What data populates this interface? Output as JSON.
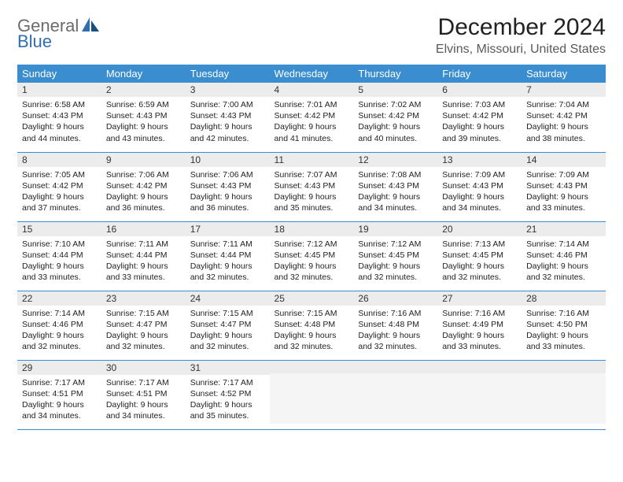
{
  "logo": {
    "line1": "General",
    "line2": "Blue"
  },
  "title": "December 2024",
  "location": "Elvins, Missouri, United States",
  "colors": {
    "header_bg": "#3a8dcf",
    "header_fg": "#ffffff",
    "daynum_bg": "#ececec",
    "rule": "#3a8dcf",
    "logo_gray": "#6b6b6b",
    "logo_blue": "#2f6fb0"
  },
  "day_headers": [
    "Sunday",
    "Monday",
    "Tuesday",
    "Wednesday",
    "Thursday",
    "Friday",
    "Saturday"
  ],
  "weeks": [
    [
      {
        "n": "1",
        "sr": "Sunrise: 6:58 AM",
        "ss": "Sunset: 4:43 PM",
        "d1": "Daylight: 9 hours",
        "d2": "and 44 minutes."
      },
      {
        "n": "2",
        "sr": "Sunrise: 6:59 AM",
        "ss": "Sunset: 4:43 PM",
        "d1": "Daylight: 9 hours",
        "d2": "and 43 minutes."
      },
      {
        "n": "3",
        "sr": "Sunrise: 7:00 AM",
        "ss": "Sunset: 4:43 PM",
        "d1": "Daylight: 9 hours",
        "d2": "and 42 minutes."
      },
      {
        "n": "4",
        "sr": "Sunrise: 7:01 AM",
        "ss": "Sunset: 4:42 PM",
        "d1": "Daylight: 9 hours",
        "d2": "and 41 minutes."
      },
      {
        "n": "5",
        "sr": "Sunrise: 7:02 AM",
        "ss": "Sunset: 4:42 PM",
        "d1": "Daylight: 9 hours",
        "d2": "and 40 minutes."
      },
      {
        "n": "6",
        "sr": "Sunrise: 7:03 AM",
        "ss": "Sunset: 4:42 PM",
        "d1": "Daylight: 9 hours",
        "d2": "and 39 minutes."
      },
      {
        "n": "7",
        "sr": "Sunrise: 7:04 AM",
        "ss": "Sunset: 4:42 PM",
        "d1": "Daylight: 9 hours",
        "d2": "and 38 minutes."
      }
    ],
    [
      {
        "n": "8",
        "sr": "Sunrise: 7:05 AM",
        "ss": "Sunset: 4:42 PM",
        "d1": "Daylight: 9 hours",
        "d2": "and 37 minutes."
      },
      {
        "n": "9",
        "sr": "Sunrise: 7:06 AM",
        "ss": "Sunset: 4:42 PM",
        "d1": "Daylight: 9 hours",
        "d2": "and 36 minutes."
      },
      {
        "n": "10",
        "sr": "Sunrise: 7:06 AM",
        "ss": "Sunset: 4:43 PM",
        "d1": "Daylight: 9 hours",
        "d2": "and 36 minutes."
      },
      {
        "n": "11",
        "sr": "Sunrise: 7:07 AM",
        "ss": "Sunset: 4:43 PM",
        "d1": "Daylight: 9 hours",
        "d2": "and 35 minutes."
      },
      {
        "n": "12",
        "sr": "Sunrise: 7:08 AM",
        "ss": "Sunset: 4:43 PM",
        "d1": "Daylight: 9 hours",
        "d2": "and 34 minutes."
      },
      {
        "n": "13",
        "sr": "Sunrise: 7:09 AM",
        "ss": "Sunset: 4:43 PM",
        "d1": "Daylight: 9 hours",
        "d2": "and 34 minutes."
      },
      {
        "n": "14",
        "sr": "Sunrise: 7:09 AM",
        "ss": "Sunset: 4:43 PM",
        "d1": "Daylight: 9 hours",
        "d2": "and 33 minutes."
      }
    ],
    [
      {
        "n": "15",
        "sr": "Sunrise: 7:10 AM",
        "ss": "Sunset: 4:44 PM",
        "d1": "Daylight: 9 hours",
        "d2": "and 33 minutes."
      },
      {
        "n": "16",
        "sr": "Sunrise: 7:11 AM",
        "ss": "Sunset: 4:44 PM",
        "d1": "Daylight: 9 hours",
        "d2": "and 33 minutes."
      },
      {
        "n": "17",
        "sr": "Sunrise: 7:11 AM",
        "ss": "Sunset: 4:44 PM",
        "d1": "Daylight: 9 hours",
        "d2": "and 32 minutes."
      },
      {
        "n": "18",
        "sr": "Sunrise: 7:12 AM",
        "ss": "Sunset: 4:45 PM",
        "d1": "Daylight: 9 hours",
        "d2": "and 32 minutes."
      },
      {
        "n": "19",
        "sr": "Sunrise: 7:12 AM",
        "ss": "Sunset: 4:45 PM",
        "d1": "Daylight: 9 hours",
        "d2": "and 32 minutes."
      },
      {
        "n": "20",
        "sr": "Sunrise: 7:13 AM",
        "ss": "Sunset: 4:45 PM",
        "d1": "Daylight: 9 hours",
        "d2": "and 32 minutes."
      },
      {
        "n": "21",
        "sr": "Sunrise: 7:14 AM",
        "ss": "Sunset: 4:46 PM",
        "d1": "Daylight: 9 hours",
        "d2": "and 32 minutes."
      }
    ],
    [
      {
        "n": "22",
        "sr": "Sunrise: 7:14 AM",
        "ss": "Sunset: 4:46 PM",
        "d1": "Daylight: 9 hours",
        "d2": "and 32 minutes."
      },
      {
        "n": "23",
        "sr": "Sunrise: 7:15 AM",
        "ss": "Sunset: 4:47 PM",
        "d1": "Daylight: 9 hours",
        "d2": "and 32 minutes."
      },
      {
        "n": "24",
        "sr": "Sunrise: 7:15 AM",
        "ss": "Sunset: 4:47 PM",
        "d1": "Daylight: 9 hours",
        "d2": "and 32 minutes."
      },
      {
        "n": "25",
        "sr": "Sunrise: 7:15 AM",
        "ss": "Sunset: 4:48 PM",
        "d1": "Daylight: 9 hours",
        "d2": "and 32 minutes."
      },
      {
        "n": "26",
        "sr": "Sunrise: 7:16 AM",
        "ss": "Sunset: 4:48 PM",
        "d1": "Daylight: 9 hours",
        "d2": "and 32 minutes."
      },
      {
        "n": "27",
        "sr": "Sunrise: 7:16 AM",
        "ss": "Sunset: 4:49 PM",
        "d1": "Daylight: 9 hours",
        "d2": "and 33 minutes."
      },
      {
        "n": "28",
        "sr": "Sunrise: 7:16 AM",
        "ss": "Sunset: 4:50 PM",
        "d1": "Daylight: 9 hours",
        "d2": "and 33 minutes."
      }
    ],
    [
      {
        "n": "29",
        "sr": "Sunrise: 7:17 AM",
        "ss": "Sunset: 4:51 PM",
        "d1": "Daylight: 9 hours",
        "d2": "and 34 minutes."
      },
      {
        "n": "30",
        "sr": "Sunrise: 7:17 AM",
        "ss": "Sunset: 4:51 PM",
        "d1": "Daylight: 9 hours",
        "d2": "and 34 minutes."
      },
      {
        "n": "31",
        "sr": "Sunrise: 7:17 AM",
        "ss": "Sunset: 4:52 PM",
        "d1": "Daylight: 9 hours",
        "d2": "and 35 minutes."
      },
      {
        "empty": true
      },
      {
        "empty": true
      },
      {
        "empty": true
      },
      {
        "empty": true
      }
    ]
  ]
}
